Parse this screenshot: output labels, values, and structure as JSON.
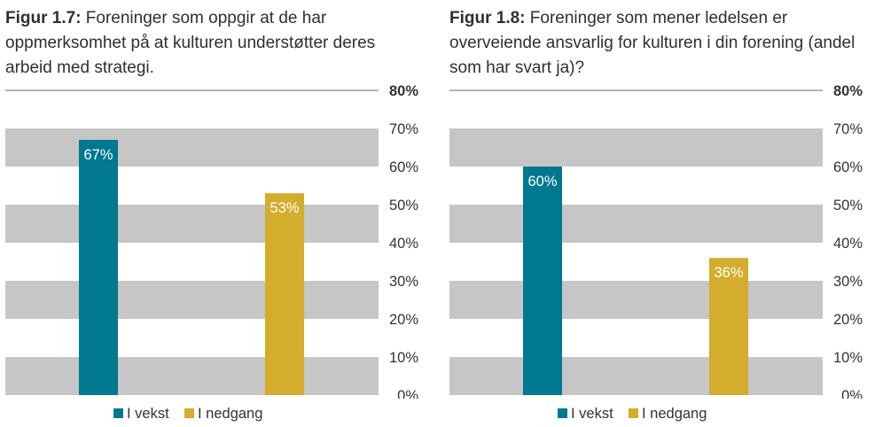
{
  "colors": {
    "vekst": "#00788f",
    "nedgang": "#d3ad2b",
    "band": "#c6c6c6",
    "axis_line": "#6e6e6e"
  },
  "chart_data": [
    {
      "type": "bar",
      "figure_label": "Figur 1.7:",
      "title": "Foreninger som oppgir at de har oppmerksomhet på at kulturen understøtter deres arbeid med strategi.",
      "categories": [
        "I vekst",
        "I nedgang"
      ],
      "values": [
        67,
        53
      ],
      "value_labels": [
        "67%",
        "53%"
      ],
      "ylim": [
        0,
        80
      ],
      "yticks": [
        0,
        10,
        20,
        30,
        40,
        50,
        60,
        70,
        80
      ],
      "ytick_labels": [
        "0%",
        "10%",
        "20%",
        "30%",
        "40%",
        "50%",
        "60%",
        "70%",
        "80%"
      ],
      "legend": [
        "I vekst",
        "I nedgang"
      ],
      "legend_position": "bottom",
      "grid": "alternating-bands"
    },
    {
      "type": "bar",
      "figure_label": "Figur 1.8:",
      "title": "Foreninger som mener ledelsen er overveiende ansvarlig for kulturen i din forening (andel som har svart ja)?",
      "categories": [
        "I vekst",
        "I nedgang"
      ],
      "values": [
        60,
        36
      ],
      "value_labels": [
        "60%",
        "36%"
      ],
      "ylim": [
        0,
        80
      ],
      "yticks": [
        0,
        10,
        20,
        30,
        40,
        50,
        60,
        70,
        80
      ],
      "ytick_labels": [
        "0%",
        "10%",
        "20%",
        "30%",
        "40%",
        "50%",
        "60%",
        "70%",
        "80%"
      ],
      "legend": [
        "I vekst",
        "I nedgang"
      ],
      "legend_position": "bottom",
      "grid": "alternating-bands"
    }
  ]
}
